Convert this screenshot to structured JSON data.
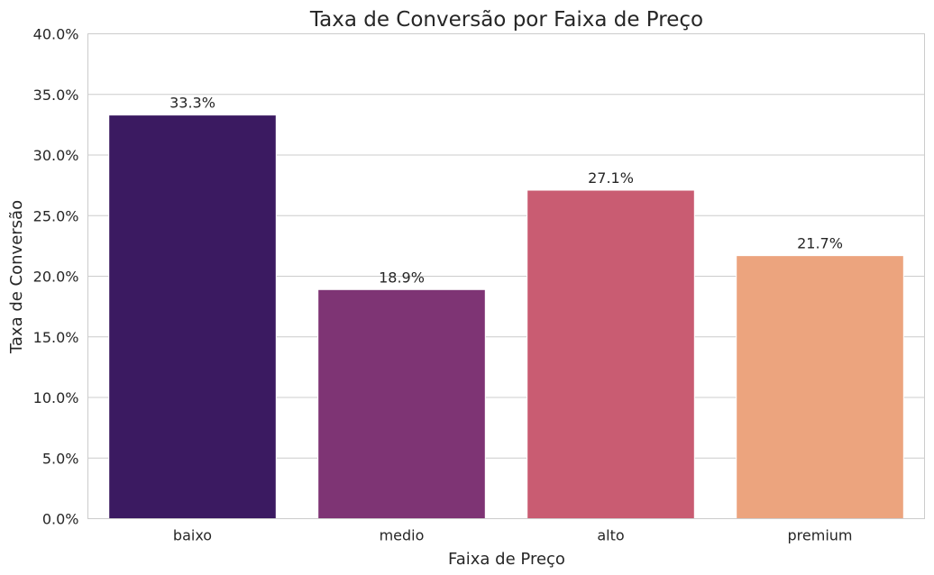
{
  "chart_data": {
    "type": "bar",
    "title": "Taxa de Conversão por Faixa de Preço",
    "xlabel": "Faixa de Preço",
    "ylabel": "Taxa de Conversão",
    "categories": [
      "baixo",
      "medio",
      "alto",
      "premium"
    ],
    "values": [
      33.3,
      18.9,
      27.1,
      21.7
    ],
    "data_labels": [
      "33.3%",
      "18.9%",
      "27.1%",
      "21.7%"
    ],
    "colors": [
      "#3b1a61",
      "#7e3474",
      "#c95c72",
      "#eca47e"
    ],
    "ylim": [
      0,
      40
    ],
    "yticks": [
      0,
      5,
      10,
      15,
      20,
      25,
      30,
      35,
      40
    ],
    "ytick_labels": [
      "0.0%",
      "5.0%",
      "10.0%",
      "15.0%",
      "20.0%",
      "25.0%",
      "30.0%",
      "35.0%",
      "40.0%"
    ],
    "grid": "horizontal",
    "legend": "none"
  }
}
